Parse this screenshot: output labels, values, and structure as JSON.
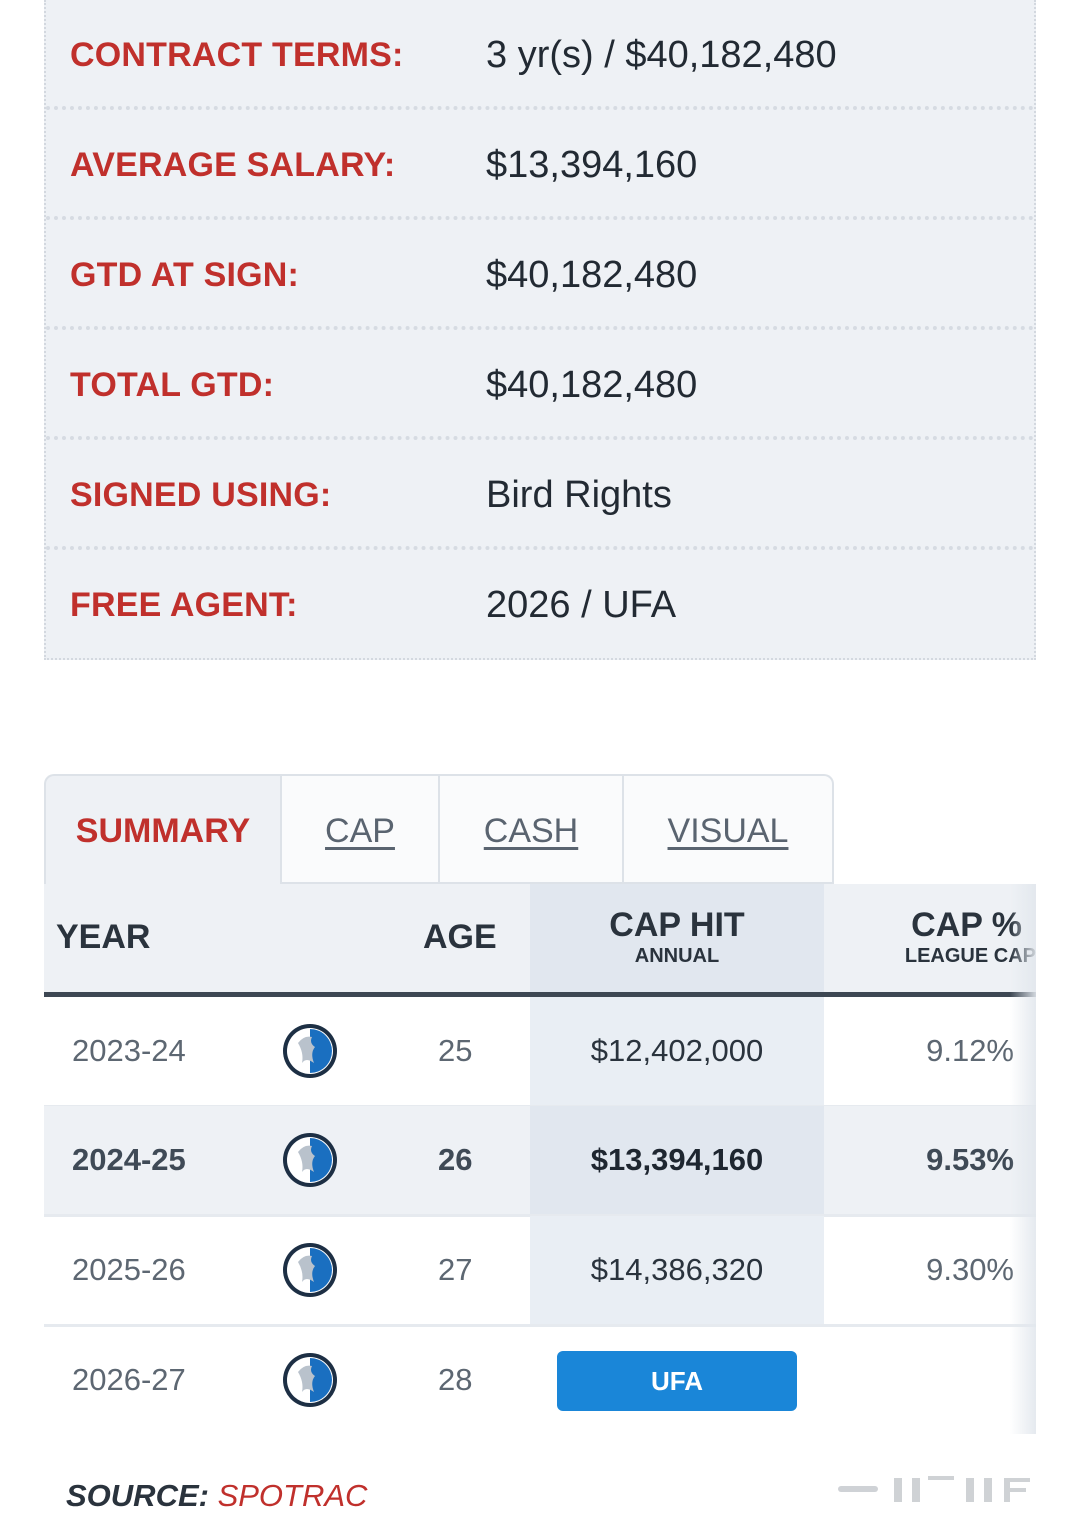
{
  "contract_details": [
    {
      "label": "CONTRACT TERMS:",
      "value": "3 yr(s) / $40,182,480"
    },
    {
      "label": "AVERAGE SALARY:",
      "value": "$13,394,160"
    },
    {
      "label": "GTD AT SIGN:",
      "value": "$40,182,480"
    },
    {
      "label": "TOTAL GTD:",
      "value": "$40,182,480"
    },
    {
      "label": "SIGNED USING:",
      "value": "Bird Rights"
    },
    {
      "label": "FREE AGENT:",
      "value": "2026 / UFA"
    }
  ],
  "tabs": [
    {
      "label": "SUMMARY",
      "active": true
    },
    {
      "label": "CAP",
      "active": false
    },
    {
      "label": "CASH",
      "active": false
    },
    {
      "label": "VISUAL",
      "active": false
    }
  ],
  "table": {
    "headers": {
      "year": "YEAR",
      "age": "AGE",
      "cap_hit": "CAP HIT",
      "cap_hit_sub": "ANNUAL",
      "cap_pct": "CAP %",
      "cap_pct_sub": "LEAGUE CAP"
    },
    "rows": [
      {
        "year": "2023-24",
        "team_icon": "mavericks-logo-icon",
        "age": "25",
        "cap_hit": "$12,402,000",
        "cap_pct": "9.12%"
      },
      {
        "year": "2024-25",
        "team_icon": "mavericks-logo-icon",
        "age": "26",
        "cap_hit": "$13,394,160",
        "cap_pct": "9.53%"
      },
      {
        "year": "2025-26",
        "team_icon": "mavericks-logo-icon",
        "age": "27",
        "cap_hit": "$14,386,320",
        "cap_pct": "9.30%"
      },
      {
        "year": "2026-27",
        "team_icon": "mavericks-logo-icon",
        "age": "28",
        "status_badge": "UFA",
        "cap_pct": ""
      }
    ]
  },
  "footer": {
    "source_label": "SOURCE:",
    "source_name": "SPOTRAC"
  },
  "colors": {
    "label_red": "#c0302c",
    "badge_blue": "#1a86d8",
    "panel_bg": "#eef1f5"
  }
}
